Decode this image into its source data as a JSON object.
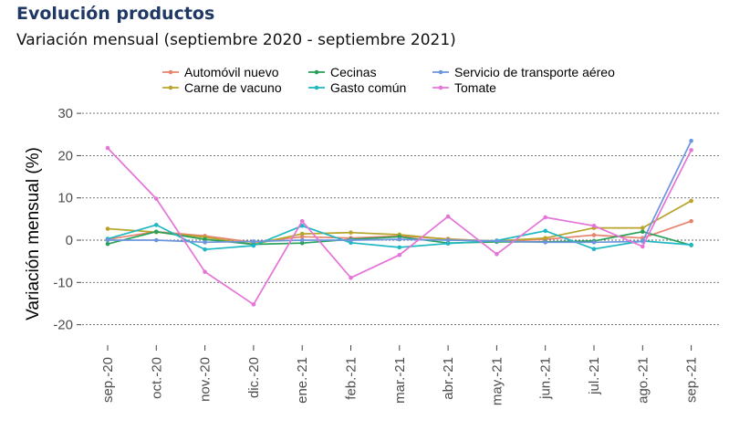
{
  "header": {
    "title": "Evolución productos",
    "subtitle": "Variación mensual (septiembre 2020 - septiembre 2021)"
  },
  "chart_data": {
    "type": "line",
    "title": "Evolución productos",
    "subtitle": "Variación mensual (septiembre 2020 - septiembre 2021)",
    "xlabel": "",
    "ylabel": "Variación mensual (%)",
    "ylim": [
      -25,
      32
    ],
    "yticks": [
      -20,
      -10,
      0,
      10,
      20,
      30
    ],
    "grid": true,
    "legend_position": "top",
    "categories": [
      "sep.-20",
      "oct.-20",
      "nov.-20",
      "dic.-20",
      "ene.-21",
      "feb.-21",
      "mar.-21",
      "abr.-21",
      "may.-21",
      "jun.-21",
      "jul.-21",
      "ago.-21",
      "sep.-21"
    ],
    "series": [
      {
        "name": "Automóvil nuevo",
        "color": "#e8836e",
        "values": [
          0.2,
          2.0,
          1.0,
          -0.5,
          0.8,
          0.5,
          1.0,
          0.3,
          -0.3,
          0.2,
          1.2,
          0.5,
          4.5
        ]
      },
      {
        "name": "Carne de vacuno",
        "color": "#b8a42a",
        "values": [
          2.7,
          1.9,
          0.7,
          -1.0,
          1.5,
          1.8,
          1.3,
          0.2,
          -0.2,
          0.5,
          2.9,
          2.9,
          9.3
        ]
      },
      {
        "name": "Cecinas",
        "color": "#27a05a",
        "values": [
          -0.9,
          2.0,
          0.2,
          -1.0,
          -0.7,
          0.2,
          0.8,
          -0.7,
          -0.4,
          -0.4,
          -0.2,
          2.0,
          -1.2
        ]
      },
      {
        "name": "Gasto común",
        "color": "#1fb7c2",
        "values": [
          0.3,
          3.6,
          -2.2,
          -1.3,
          3.4,
          -0.6,
          -1.7,
          -0.8,
          -0.1,
          2.2,
          -2.1,
          -0.2,
          -1.1
        ]
      },
      {
        "name": "Servicio de transporte aéreo",
        "color": "#6d95de",
        "values": [
          0.0,
          0.0,
          -0.5,
          -0.3,
          0.0,
          0.0,
          0.2,
          0.0,
          -0.2,
          -0.5,
          -0.5,
          -0.3,
          23.5
        ]
      },
      {
        "name": "Tomate",
        "color": "#e474d8",
        "values": [
          21.8,
          9.8,
          -7.5,
          -15.2,
          4.5,
          -8.9,
          -3.5,
          5.6,
          -3.3,
          5.4,
          3.4,
          -1.5,
          21.3
        ]
      }
    ],
    "legend_layout": [
      {
        "series": 0,
        "col": 0,
        "row": 0
      },
      {
        "series": 2,
        "col": 1,
        "row": 0
      },
      {
        "series": 4,
        "col": 2,
        "row": 0
      },
      {
        "series": 1,
        "col": 0,
        "row": 1
      },
      {
        "series": 3,
        "col": 1,
        "row": 1
      },
      {
        "series": 5,
        "col": 2,
        "row": 1
      }
    ]
  }
}
